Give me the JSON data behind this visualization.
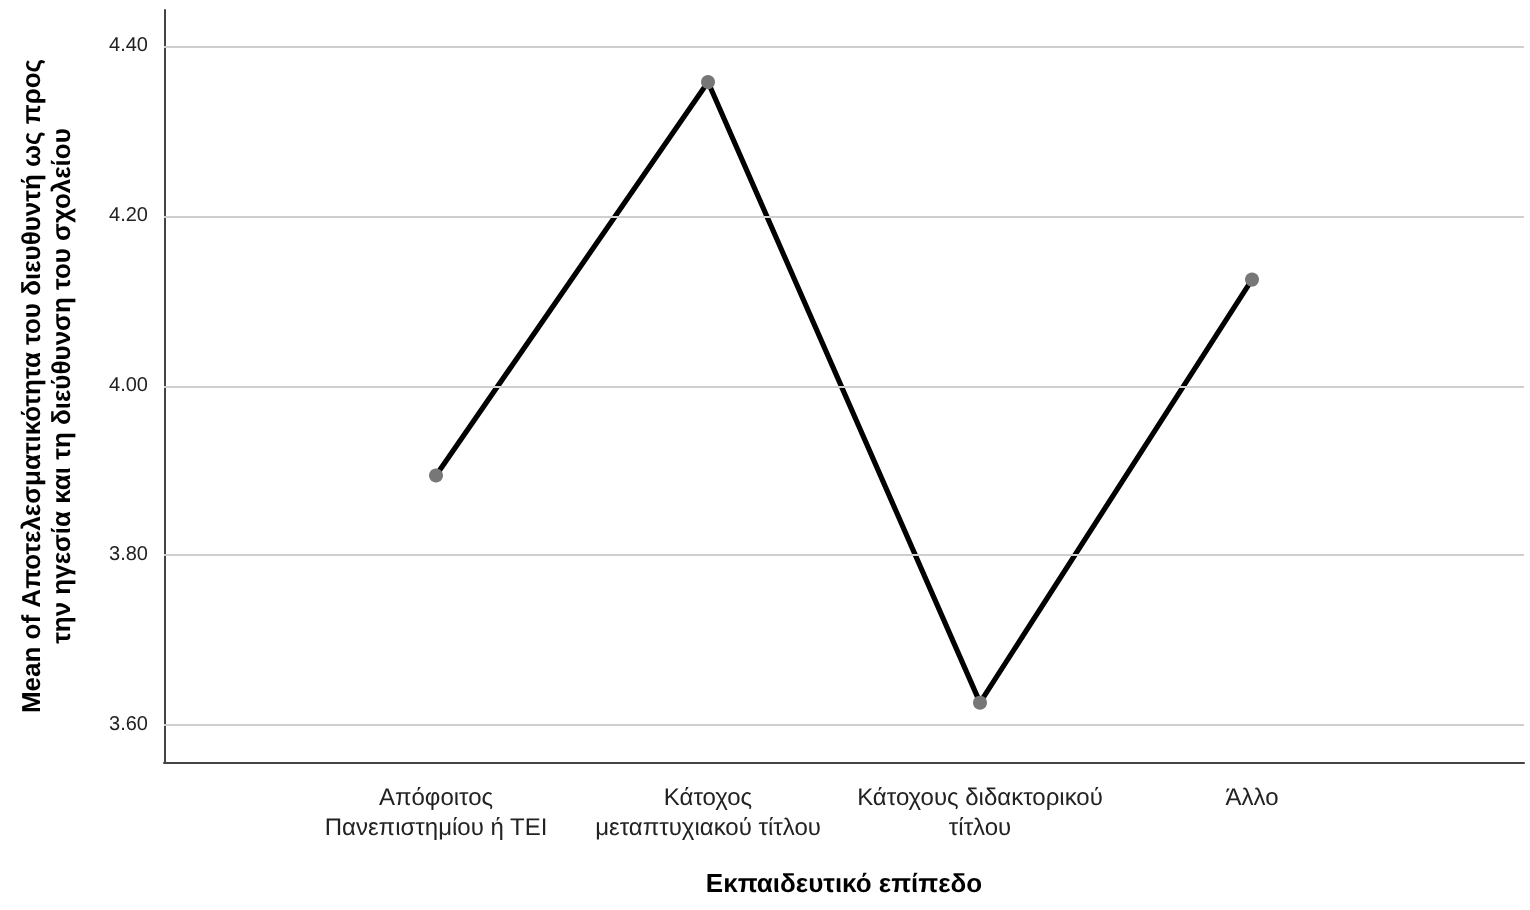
{
  "chart_data": {
    "type": "line",
    "xlabel": "Εκπαιδευτικό επίπεδο",
    "ylabel": "Mean of Αποτελεσματικότητα του διευθυντή ως προς\nτην ηγεσία και τη διεύθυνση του σχολείου",
    "categories": [
      "Απόφοιτος\nΠανεπιστημίου ή ΤΕΙ",
      "Κάτοχος\nμεταπτυχιακού τίτλου",
      "Κάτοχους διδακτορικού\nτίτλου",
      "Άλλο"
    ],
    "series": [
      {
        "color": "#000000",
        "values": [
          3.894,
          4.358,
          3.626,
          4.125
        ]
      }
    ],
    "ylim": [
      3.556,
      4.443
    ],
    "yticks": [
      {
        "value": 3.6,
        "label": "3.60"
      },
      {
        "value": 3.8,
        "label": "3.80"
      },
      {
        "value": 4.0,
        "label": "4.00"
      },
      {
        "value": 4.2,
        "label": "4.20"
      },
      {
        "value": 4.4,
        "label": "4.40"
      }
    ],
    "grid": "y",
    "marker": "circle",
    "line_style": "solid"
  }
}
